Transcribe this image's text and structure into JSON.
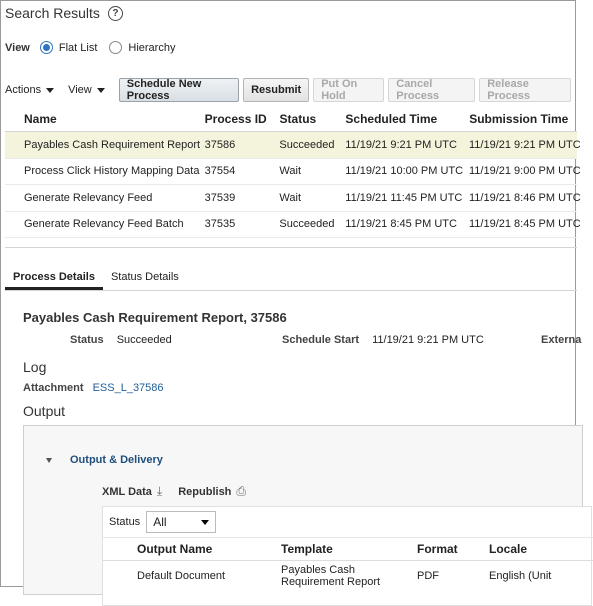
{
  "header": {
    "title": "Search Results"
  },
  "view": {
    "label": "View",
    "options": [
      "Flat List",
      "Hierarchy"
    ],
    "selected": "Flat List"
  },
  "toolbar": {
    "actions_label": "Actions",
    "view_label": "View",
    "schedule_label": "Schedule New Process",
    "resubmit_label": "Resubmit",
    "put_on_hold_label": "Put On Hold",
    "cancel_label": "Cancel Process",
    "release_label": "Release Process"
  },
  "results": {
    "columns": [
      "Name",
      "Process ID",
      "Status",
      "Scheduled Time",
      "Submission Time"
    ],
    "rows": [
      {
        "name": "Payables Cash Requirement Report",
        "id": "37586",
        "status": "Succeeded",
        "scheduled": "11/19/21 9:21 PM UTC",
        "submitted": "11/19/21 9:21 PM UTC"
      },
      {
        "name": "Process Click History Mapping Data",
        "id": "37554",
        "status": "Wait",
        "scheduled": "11/19/21 10:00 PM UTC",
        "submitted": "11/19/21 9:00 PM UTC"
      },
      {
        "name": "Generate Relevancy Feed",
        "id": "37539",
        "status": "Wait",
        "scheduled": "11/19/21 11:45 PM UTC",
        "submitted": "11/19/21 8:46 PM UTC"
      },
      {
        "name": "Generate Relevancy Feed Batch",
        "id": "37535",
        "status": "Succeeded",
        "scheduled": "11/19/21 8:45 PM UTC",
        "submitted": "11/19/21 8:45 PM UTC"
      }
    ]
  },
  "tabs": [
    "Process Details",
    "Status Details"
  ],
  "details": {
    "title": "Payables Cash Requirement Report, 37586",
    "status_label": "Status",
    "status_value": "Succeeded",
    "schedule_start_label": "Schedule Start",
    "schedule_start_value": "11/19/21 9:21 PM UTC",
    "external_label": "Externa",
    "log_heading": "Log",
    "attachment_label": "Attachment",
    "attachment_link": "ESS_L_37586",
    "output_heading": "Output"
  },
  "output": {
    "section_label": "Output & Delivery",
    "xml_data_label": "XML Data",
    "republish_label": "Republish",
    "status_filter_label": "Status",
    "status_filter_value": "All",
    "columns": [
      "Output Name",
      "Template",
      "Format",
      "Locale"
    ],
    "rows": [
      {
        "name": "Default Document",
        "template": "Payables Cash Requirement Report",
        "format": "PDF",
        "locale": "English (Unit"
      }
    ]
  }
}
